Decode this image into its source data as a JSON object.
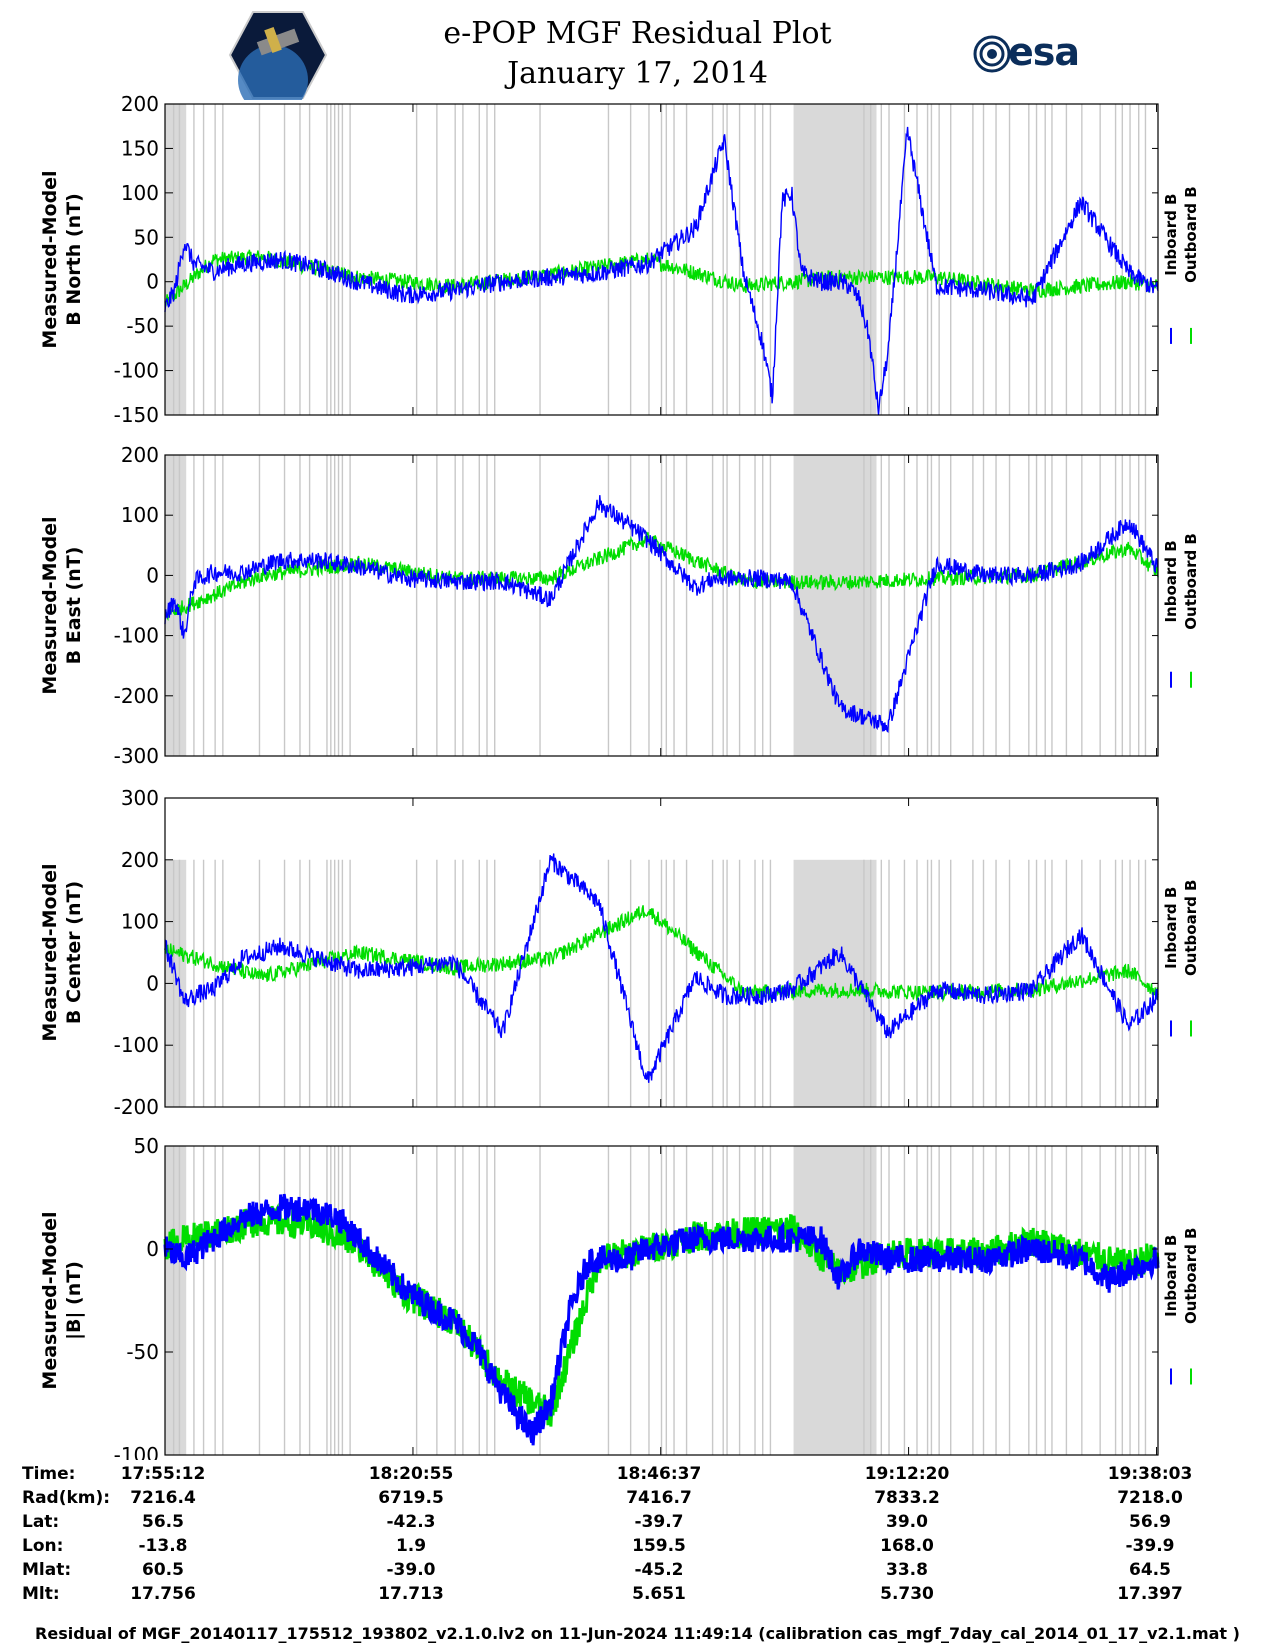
{
  "header": {
    "title_line1": "e-POP MGF Residual Plot",
    "title_line2": "January 17, 2014",
    "logo_right_text": "esa"
  },
  "legend": {
    "inboard": "Inboard B",
    "outboard": "Outboard B"
  },
  "colors": {
    "inboard": "#0000ff",
    "outboard": "#00dd00",
    "shade": "#d9d9d9",
    "gapline": "#c8c8c8"
  },
  "chart_data": [
    {
      "type": "line",
      "ylabel_line1": "Measured-Model",
      "ylabel_line2": "B North (nT)",
      "ylim": [
        -150,
        200
      ],
      "yticks": [
        "200",
        "150",
        "100",
        "50",
        "0",
        "-50",
        "-100",
        "-150"
      ],
      "x_range_minutes": [
        0,
        103
      ],
      "series": [
        {
          "name": "Inboard B",
          "x": [
            0,
            1,
            2,
            3,
            5,
            8,
            12,
            16,
            20,
            25,
            30,
            35,
            40,
            45,
            50,
            55,
            58,
            60,
            62,
            63,
            64,
            65,
            66,
            67,
            68,
            69,
            70,
            71,
            72,
            73,
            74,
            75,
            77,
            80,
            85,
            90,
            95,
            100,
            103
          ],
          "y": [
            -30,
            -10,
            45,
            20,
            12,
            20,
            25,
            15,
            0,
            -15,
            -10,
            0,
            5,
            10,
            20,
            60,
            160,
            10,
            -70,
            -130,
            90,
            100,
            10,
            5,
            0,
            0,
            0,
            -5,
            -20,
            -60,
            -145,
            -80,
            170,
            -5,
            -10,
            -20,
            90,
            10,
            -10
          ]
        },
        {
          "name": "Outboard B",
          "x": [
            0,
            5,
            10,
            20,
            30,
            40,
            50,
            60,
            70,
            80,
            90,
            100,
            103
          ],
          "y": [
            -25,
            25,
            28,
            5,
            -5,
            8,
            25,
            -5,
            5,
            5,
            -10,
            0,
            -5
          ]
        }
      ]
    },
    {
      "type": "line",
      "ylabel_line1": "Measured-Model",
      "ylabel_line2": "B East (nT)",
      "ylim": [
        -300,
        200
      ],
      "yticks": [
        "200",
        "100",
        "0",
        "-100",
        "-200",
        "-300"
      ],
      "x_range_minutes": [
        0,
        103
      ],
      "series": [
        {
          "name": "Inboard B",
          "x": [
            0,
            1,
            2,
            3,
            5,
            8,
            12,
            16,
            20,
            25,
            30,
            35,
            40,
            45,
            50,
            55,
            57,
            60,
            62,
            65,
            70,
            75,
            80,
            85,
            90,
            95,
            100,
            103
          ],
          "y": [
            -70,
            -40,
            -100,
            -10,
            5,
            5,
            25,
            25,
            15,
            -5,
            -10,
            -10,
            -40,
            120,
            60,
            -20,
            -5,
            -5,
            -5,
            -10,
            -220,
            -250,
            20,
            0,
            0,
            20,
            90,
            10
          ]
        },
        {
          "name": "Outboard B",
          "x": [
            0,
            10,
            20,
            30,
            40,
            50,
            60,
            70,
            80,
            90,
            100,
            103
          ],
          "y": [
            -65,
            0,
            20,
            -5,
            -5,
            60,
            -10,
            -12,
            -5,
            0,
            45,
            5
          ]
        }
      ]
    },
    {
      "type": "line",
      "ylabel_line1": "Measured-Model",
      "ylabel_line2": "B Center (nT)",
      "ylim": [
        -200,
        300
      ],
      "yticks": [
        "300",
        "200",
        "100",
        "0",
        "-100",
        "-200"
      ],
      "x_range_minutes": [
        0,
        103
      ],
      "series": [
        {
          "name": "Inboard B",
          "x": [
            0,
            1,
            2,
            3,
            5,
            8,
            12,
            16,
            20,
            25,
            30,
            35,
            40,
            45,
            50,
            55,
            58,
            60,
            62,
            65,
            70,
            75,
            80,
            85,
            90,
            95,
            100,
            103
          ],
          "y": [
            60,
            20,
            -30,
            -20,
            -10,
            40,
            60,
            40,
            20,
            25,
            35,
            -80,
            200,
            130,
            -160,
            10,
            -20,
            -20,
            -20,
            -10,
            50,
            -80,
            -10,
            -20,
            -10,
            80,
            -70,
            -20
          ]
        },
        {
          "name": "Outboard B",
          "x": [
            0,
            10,
            20,
            30,
            40,
            50,
            60,
            70,
            80,
            90,
            100,
            103
          ],
          "y": [
            55,
            10,
            50,
            25,
            40,
            120,
            -15,
            -10,
            -15,
            -10,
            20,
            -15
          ]
        }
      ]
    },
    {
      "type": "line",
      "ylabel_line1": "Measured-Model",
      "ylabel_line2": "|B| (nT)",
      "ylim": [
        -100,
        50
      ],
      "yticks": [
        "50",
        "0",
        "-50",
        "-100"
      ],
      "x_range_minutes": [
        0,
        103
      ],
      "series": [
        {
          "name": "Inboard B",
          "x": [
            0,
            2,
            5,
            8,
            12,
            15,
            18,
            20,
            22,
            25,
            28,
            30,
            32,
            35,
            38,
            40,
            42,
            44,
            46,
            48,
            50,
            55,
            60,
            65,
            68,
            70,
            72,
            75,
            80,
            85,
            90,
            95,
            98,
            100,
            103
          ],
          "y": [
            0,
            -5,
            5,
            15,
            20,
            20,
            15,
            5,
            -5,
            -20,
            -30,
            -35,
            -45,
            -70,
            -90,
            -75,
            -30,
            -5,
            -5,
            -5,
            0,
            5,
            5,
            5,
            5,
            -15,
            0,
            -5,
            -5,
            -5,
            0,
            -5,
            -15,
            -10,
            -5
          ]
        },
        {
          "name": "Outboard B",
          "x": [
            0,
            5,
            10,
            15,
            20,
            25,
            30,
            35,
            40,
            45,
            50,
            55,
            60,
            65,
            70,
            75,
            80,
            85,
            90,
            95,
            100,
            103
          ],
          "y": [
            2,
            8,
            14,
            12,
            2,
            -22,
            -35,
            -65,
            -80,
            -5,
            0,
            6,
            8,
            10,
            -12,
            -2,
            -2,
            -2,
            4,
            -2,
            -8,
            -2
          ]
        }
      ]
    }
  ],
  "x_axis": {
    "tick_minutes": [
      0,
      25.72,
      51.42,
      77.13,
      102.85
    ]
  },
  "ephemeris": {
    "row_labels": [
      "Time:",
      "Rad(km):",
      "Lat:",
      "Lon:",
      "Mlat:",
      "Mlt:"
    ],
    "columns": [
      [
        "17:55:12",
        "7216.4",
        "56.5",
        "-13.8",
        "60.5",
        "17.756"
      ],
      [
        "18:20:55",
        "6719.5",
        "-42.3",
        "1.9",
        "-39.0",
        "17.713"
      ],
      [
        "18:46:37",
        "7416.7",
        "-39.7",
        "159.5",
        "-45.2",
        "5.651"
      ],
      [
        "19:12:20",
        "7833.2",
        "39.0",
        "168.0",
        "33.8",
        "5.730"
      ],
      [
        "19:38:03",
        "7218.0",
        "56.9",
        "-39.9",
        "64.5",
        "17.397"
      ]
    ]
  },
  "footer": {
    "text": "Residual of MGF_20140117_175512_193802_v2.1.0.lv2 on 11-Jun-2024 11:49:14 (calibration cas_mgf_7day_cal_2014_01_17_v2.1.mat )"
  }
}
